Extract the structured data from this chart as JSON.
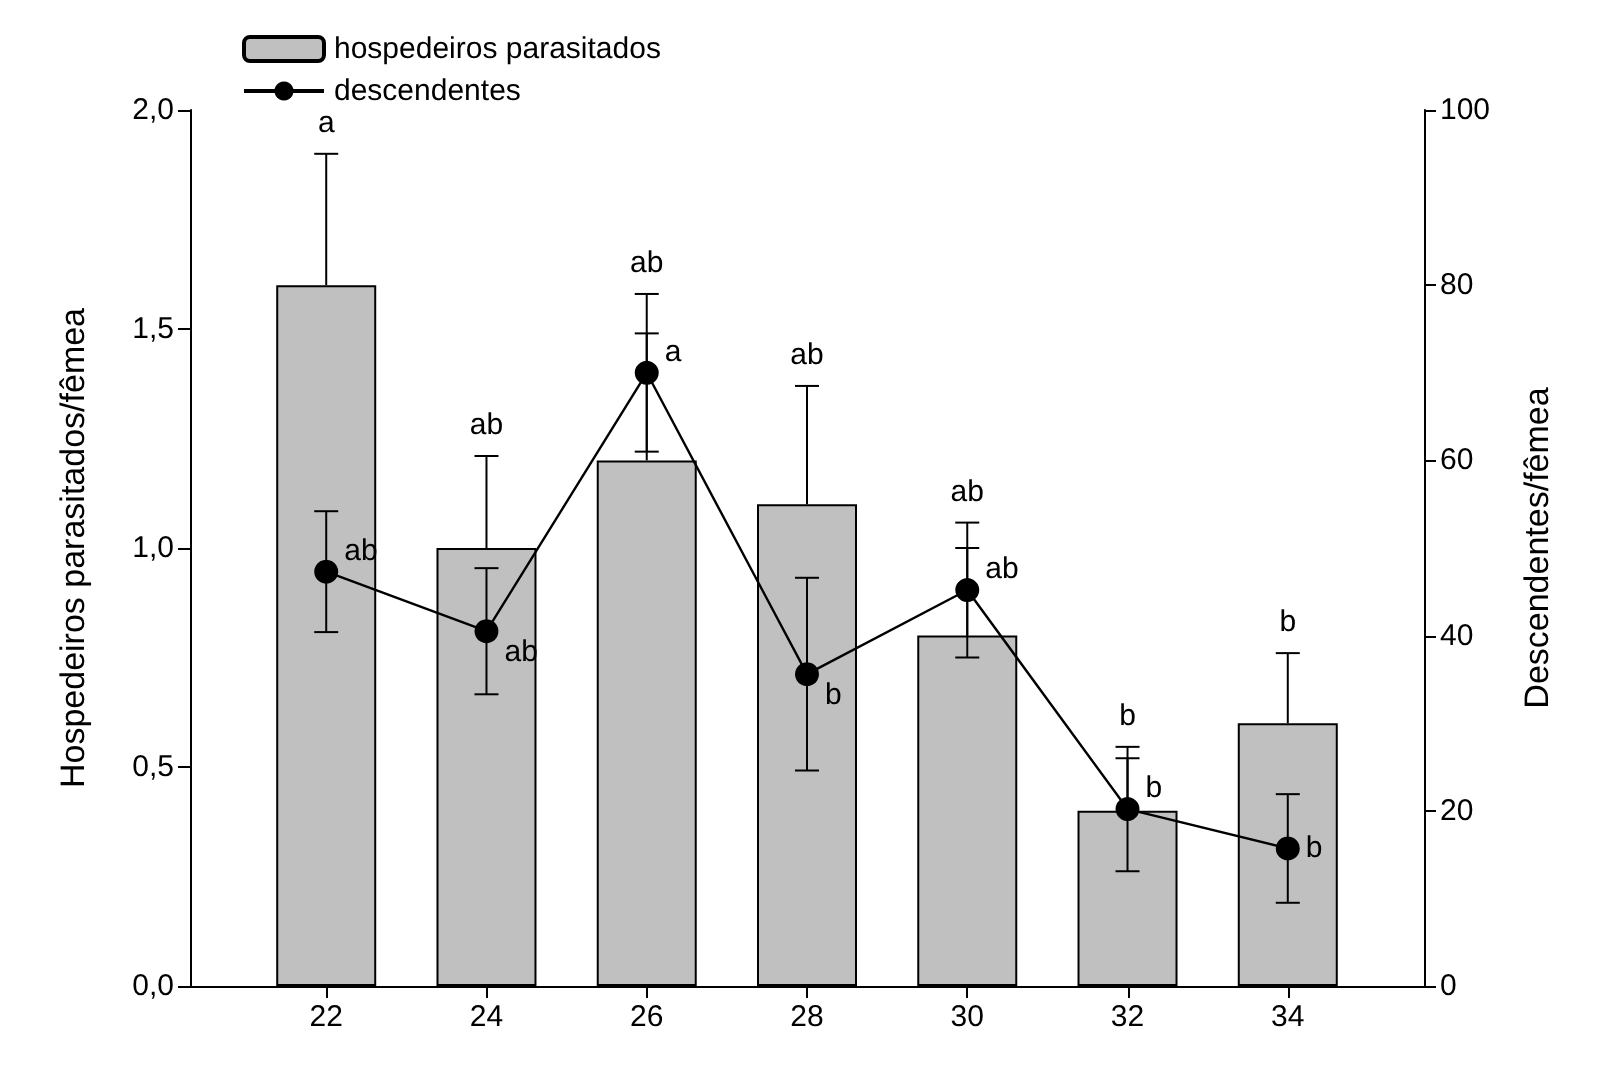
{
  "chart_data": {
    "type": "bar",
    "ylabel": "Hospedeiros parasitados/fêmea",
    "y2label": "Descendentes/fêmea",
    "x": [
      22,
      24,
      26,
      28,
      30,
      32,
      34
    ],
    "xlim": [
      20.3,
      35.7
    ],
    "xticks": [
      22,
      24,
      26,
      28,
      30,
      32,
      34
    ],
    "ylim": [
      0,
      2
    ],
    "yticks": [
      {
        "value": 0,
        "label": "0,0"
      },
      {
        "value": 0.5,
        "label": "0,5"
      },
      {
        "value": 1,
        "label": "1,0"
      },
      {
        "value": 1.5,
        "label": "1,5"
      },
      {
        "value": 2,
        "label": "2,0"
      }
    ],
    "y2lim": [
      0,
      100
    ],
    "y2ticks": [
      0,
      20,
      40,
      60,
      80,
      100
    ],
    "series": [
      {
        "name": "hospedeiros parasitados",
        "color": "#c0c0c0",
        "values": [
          1.6,
          1.0,
          1.2,
          1.1,
          0.8,
          0.4,
          0.6
        ],
        "errors": [
          [
            1.6,
            1.9
          ],
          [
            1.0,
            1.21
          ],
          [
            1.2,
            1.49
          ],
          [
            1.1,
            1.37
          ],
          [
            0.8,
            1.0
          ],
          [
            0.4,
            0.52
          ],
          [
            0.6,
            0.76
          ]
        ]
      },
      {
        "name": "descendentes",
        "type": "line",
        "axis": "y2",
        "color": "#000000",
        "marker": "circle",
        "values": [
          47.3,
          40.5,
          70,
          35.6,
          45.2,
          20.2,
          15.7
        ],
        "errors": [
          6.9,
          7.2,
          9,
          11,
          7.7,
          7.1,
          6.2
        ]
      }
    ],
    "annotations": [
      "a",
      "ab",
      "ab",
      "ab",
      "ab",
      "b",
      "b",
      "ab",
      "ab",
      "a",
      "b",
      "ab",
      "b",
      "b"
    ],
    "legend": "top left",
    "grid": false
  }
}
